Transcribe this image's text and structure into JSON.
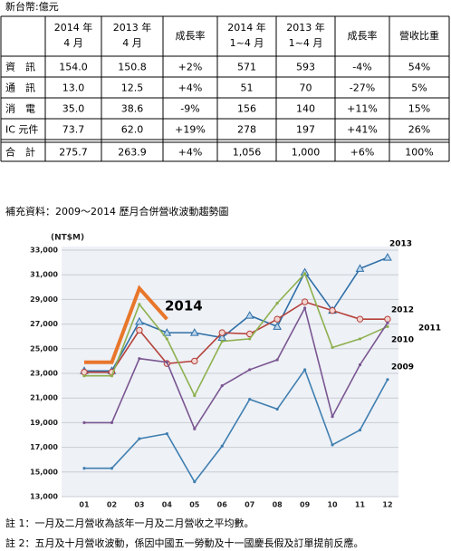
{
  "unit": "新台幣:億元",
  "table": {
    "header": [
      [
        "2014 年",
        "4 月"
      ],
      [
        "2013 年",
        "4 月"
      ],
      [
        "成長率"
      ],
      [
        "2014 年",
        "1~4 月"
      ],
      [
        "2013 年",
        "1~4 月"
      ],
      [
        "成長率"
      ],
      [
        "營收比重"
      ]
    ],
    "rows": [
      [
        "資　訊",
        "154.0",
        "150.8",
        "+2%",
        "571",
        "593",
        "-4%",
        "54%"
      ],
      [
        "通　訊",
        "13.0",
        "12.5",
        "+4%",
        "51",
        "70",
        "-27%",
        "5%"
      ],
      [
        "消　電",
        "35.0",
        "38.6",
        "-9%",
        "156",
        "140",
        "+11%",
        "15%"
      ],
      [
        "IC 元件",
        "73.7",
        "62.0",
        "+19%",
        "278",
        "197",
        "+41%",
        "26%"
      ],
      [
        "合　計",
        "275.7",
        "263.9",
        "+4%",
        "1,056",
        "1,000",
        "+6%",
        "100%"
      ]
    ]
  },
  "chart_data": {
    "type": "line",
    "title": "補充資料：2009～2014 歷月合併營收波動趨勢圖",
    "y_label": "(NT$M)",
    "categories": [
      "01",
      "02",
      "03",
      "04",
      "05",
      "06",
      "07",
      "08",
      "09",
      "10",
      "11",
      "12"
    ],
    "ylim": [
      13000,
      33000
    ],
    "yticks": [
      {
        "value": 13000,
        "label": "13,000"
      },
      {
        "value": 15000,
        "label": "15,000"
      },
      {
        "value": 17000,
        "label": "17,000"
      },
      {
        "value": 19000,
        "label": "19,000"
      },
      {
        "value": 21000,
        "label": "21,000"
      },
      {
        "value": 23000,
        "label": "23,000"
      },
      {
        "value": 25000,
        "label": "25,000"
      },
      {
        "value": 27000,
        "label": "27,000"
      },
      {
        "value": 29000,
        "label": "29,000"
      },
      {
        "value": 31000,
        "label": "31,000"
      },
      {
        "value": 33000,
        "label": "33,000"
      }
    ],
    "grid": true,
    "series": [
      {
        "name": "2013",
        "color": "#2e6fa7",
        "marker": "triangle",
        "values": [
          23200,
          23200,
          27200,
          26300,
          26300,
          25900,
          27700,
          26800,
          31200,
          28100,
          31500,
          32400
        ]
      },
      {
        "name": "2012",
        "color": "#b5413a",
        "marker": "circle",
        "values": [
          23100,
          23100,
          26500,
          23800,
          24000,
          26300,
          26200,
          27400,
          28800,
          28100,
          27400,
          27400
        ]
      },
      {
        "name": "2011",
        "color": "#8db04e",
        "marker": "dot",
        "values": [
          22800,
          22800,
          28600,
          25800,
          21200,
          25600,
          25800,
          28700,
          31100,
          25100,
          25800,
          26800
        ]
      },
      {
        "name": "2010",
        "color": "#7a5691",
        "marker": "dot",
        "values": [
          19000,
          19000,
          24200,
          23900,
          18500,
          22000,
          23300,
          24100,
          28300,
          19500,
          23700,
          27100
        ]
      },
      {
        "name": "2009",
        "color": "#3f7fb0",
        "marker": "dot",
        "values": [
          15300,
          15300,
          17700,
          18100,
          14200,
          17100,
          20900,
          20100,
          23300,
          17200,
          18400,
          22500
        ]
      },
      {
        "name": "2014",
        "color": "#e8762a",
        "marker": "none",
        "width": 4,
        "values": [
          23900,
          23900,
          29900,
          27400,
          null,
          null,
          null,
          null,
          null,
          null,
          null,
          null
        ]
      }
    ]
  },
  "notes": [
    "註 1：一月及二月營收為該年一月及二月營收之平均數。",
    "註 2：五月及十月營收波動，係因中國五一勞動及十一國慶長假及訂單提前反應。"
  ]
}
